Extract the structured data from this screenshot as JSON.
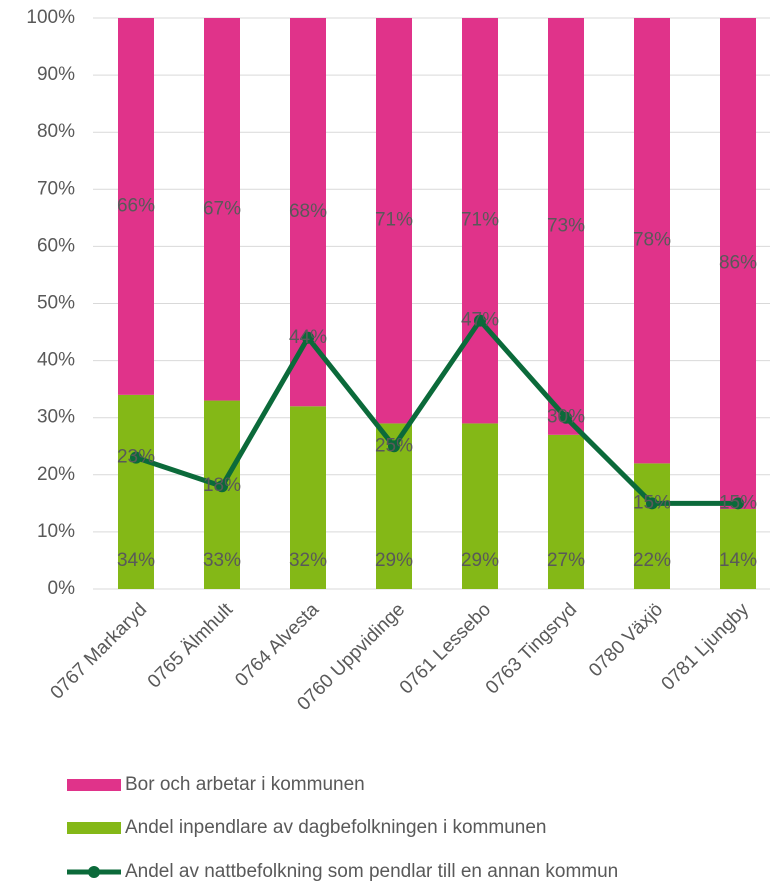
{
  "chart_data": {
    "type": "bar",
    "stacked": true,
    "categories": [
      "0767 Markaryd",
      "0765 Älmhult",
      "0764 Alvesta",
      "0760 Uppvidinge",
      "0761 Lessebo",
      "0763 Tingsryd",
      "0780 Växjö",
      "0781 Ljungby"
    ],
    "series": [
      {
        "name": "Bor och arbetar i kommunen",
        "color": "#e0338a",
        "type": "bar",
        "values": [
          66,
          67,
          68,
          71,
          71,
          73,
          78,
          86
        ],
        "value_labels": [
          "66%",
          "67%",
          "68%",
          "71%",
          "71%",
          "73%",
          "78%",
          "86%"
        ]
      },
      {
        "name": "Andel inpendlare av dagbefolkningen i kommunen",
        "color": "#84b817",
        "type": "bar",
        "values": [
          34,
          33,
          32,
          29,
          29,
          27,
          22,
          14
        ],
        "value_labels": [
          "34%",
          "33%",
          "32%",
          "29%",
          "29%",
          "27%",
          "22%",
          "14%"
        ]
      },
      {
        "name": "Andel av nattbefolkning som pendlar till en annan kommun",
        "color": "#0b6a3a",
        "type": "line",
        "values": [
          23,
          18,
          44,
          25,
          47,
          30,
          15,
          15
        ],
        "value_labels": [
          "23%",
          "18%",
          "44%",
          "25%",
          "47%",
          "30%",
          "15%",
          "15%"
        ]
      }
    ],
    "ylim": [
      0,
      100
    ],
    "yticks": [
      {
        "value": 0,
        "label": "0%"
      },
      {
        "value": 10,
        "label": "10%"
      },
      {
        "value": 20,
        "label": "20%"
      },
      {
        "value": 30,
        "label": "30%"
      },
      {
        "value": 40,
        "label": "40%"
      },
      {
        "value": 50,
        "label": "50%"
      },
      {
        "value": 60,
        "label": "60%"
      },
      {
        "value": 70,
        "label": "70%"
      },
      {
        "value": 80,
        "label": "80%"
      },
      {
        "value": 90,
        "label": "90%"
      },
      {
        "value": 100,
        "label": "100%"
      }
    ],
    "grid": true
  }
}
